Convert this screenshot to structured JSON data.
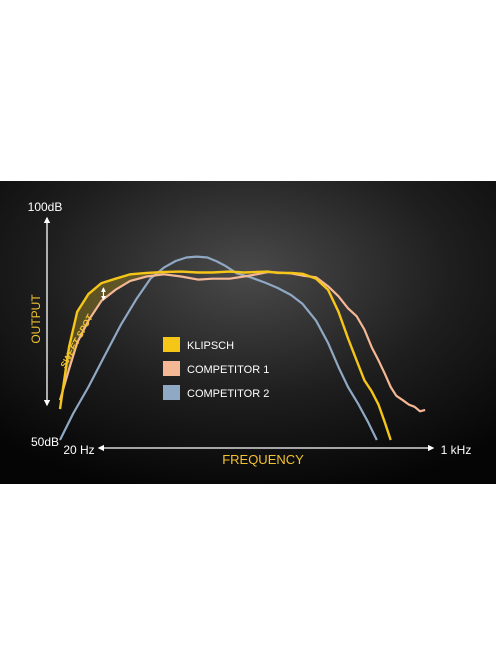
{
  "colors": {
    "klipsch": "#f5c518",
    "competitor_1": "#f5b896",
    "competitor_2": "#8fa8c4",
    "sweet_spot_fill": "#8a7622",
    "axis": "#ffffff",
    "label_gold": "#f2c230"
  },
  "chart_data": {
    "type": "line",
    "title": "",
    "xlabel": "FREQUENCY",
    "ylabel": "OUTPUT",
    "x_scale": "log",
    "xlim": [
      20,
      1000
    ],
    "ylim": [
      50,
      100
    ],
    "x_min_label": "20 Hz",
    "x_max_label": "1 kHz",
    "y_max_label": "100dB",
    "y_min_label": "50dB",
    "annotation": "SWEET SPOT",
    "grid": false,
    "legend_position": "center-left",
    "series": [
      {
        "name": "KLIPSCH",
        "x": [
          20,
          22,
          24,
          27,
          31,
          36,
          42,
          50,
          60,
          72,
          86,
          100,
          120,
          140,
          160,
          180,
          200,
          230,
          260,
          300,
          340,
          380,
          420,
          460,
          500,
          540,
          580,
          620,
          660
        ],
        "y": [
          57,
          71,
          79,
          83,
          85.5,
          86.5,
          87.5,
          87.8,
          88,
          88.1,
          87.9,
          87.9,
          88.1,
          87.9,
          88,
          88.1,
          87.8,
          87.8,
          87.6,
          86.5,
          84,
          79,
          73,
          68,
          63.5,
          61,
          58,
          54,
          50
        ]
      },
      {
        "name": "COMPETITOR 1",
        "x": [
          20,
          22,
          24,
          27,
          31,
          36,
          42,
          50,
          60,
          72,
          86,
          100,
          120,
          140,
          160,
          180,
          200,
          230,
          260,
          300,
          340,
          380,
          420,
          460,
          500,
          540,
          580,
          620,
          660,
          700,
          750,
          800,
          850,
          900,
          950
        ],
        "y": [
          59,
          66,
          72,
          77,
          81.5,
          84,
          86,
          87,
          87.5,
          87,
          86.3,
          86.5,
          86.5,
          87,
          87.5,
          88,
          87.9,
          87.7,
          87.2,
          86.8,
          84.8,
          82.5,
          79.8,
          78,
          75,
          71,
          68,
          65,
          62,
          60,
          59,
          58,
          57.5,
          56.5,
          56.8
        ]
      },
      {
        "name": "COMPETITOR 2",
        "x": [
          20,
          23,
          27,
          32,
          38,
          45,
          52,
          60,
          68,
          76,
          85,
          95,
          105,
          115,
          130,
          150,
          175,
          200,
          230,
          260,
          300,
          340,
          380,
          420,
          470,
          520,
          570
        ],
        "y": [
          50,
          56,
          62,
          69,
          76,
          82,
          86.5,
          89,
          90.5,
          91.3,
          91.5,
          91.3,
          90.4,
          89.4,
          87.7,
          86.8,
          85.6,
          84.4,
          82.8,
          80.8,
          77,
          72,
          66.5,
          62,
          58,
          54,
          50
        ]
      }
    ]
  }
}
